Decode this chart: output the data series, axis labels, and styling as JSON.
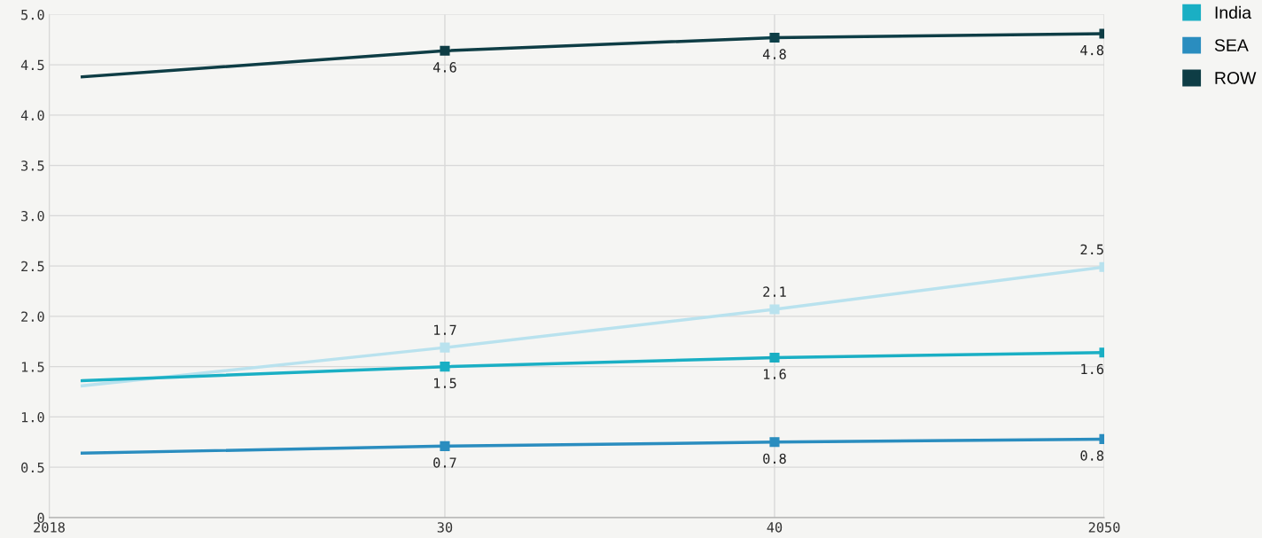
{
  "chart_data": {
    "type": "line",
    "x": [
      2019,
      2030,
      2040,
      2050
    ],
    "series": [
      {
        "color": "#b9e2ee",
        "values": [
          1.31,
          1.69,
          2.07,
          2.49
        ],
        "value_labels": [
          null,
          "1.7",
          "2.1",
          "2.5"
        ]
      },
      {
        "name": "India",
        "color": "#1aafc4",
        "values": [
          1.36,
          1.5,
          1.59,
          1.64
        ],
        "value_labels": [
          null,
          "1.5",
          "1.6",
          "1.6"
        ]
      },
      {
        "name": "SEA",
        "color": "#2a8dbf",
        "values": [
          0.64,
          0.71,
          0.75,
          0.78
        ],
        "value_labels": [
          null,
          "0.7",
          "0.8",
          "0.8"
        ]
      },
      {
        "name": "ROW",
        "color": "#0e3d45",
        "values": [
          4.38,
          4.64,
          4.77,
          4.81
        ],
        "value_labels": [
          null,
          "4.6",
          "4.8",
          "4.8"
        ]
      }
    ],
    "xlim": [
      2018,
      2050
    ],
    "xticks": [
      2018,
      {
        "value": 2030,
        "label": "30"
      },
      {
        "value": 2040,
        "label": "40"
      },
      2050
    ],
    "ylim": [
      0,
      5
    ],
    "yticks": [
      0,
      {
        "value": 0.5,
        "label": "0.5"
      },
      {
        "value": 1,
        "label": "1.0"
      },
      {
        "value": 1.5,
        "label": "1.5"
      },
      {
        "value": 2,
        "label": "2.0"
      },
      {
        "value": 2.5,
        "label": "2.5"
      },
      {
        "value": 3,
        "label": "3.0"
      },
      {
        "value": 3.5,
        "label": "3.5"
      },
      {
        "value": 4,
        "label": "4.0"
      },
      {
        "value": 4.5,
        "label": "4.5"
      },
      {
        "value": 5,
        "label": "5.0"
      }
    ],
    "grid": true,
    "legend": "top right",
    "marker": "square",
    "line_style": "solid"
  }
}
